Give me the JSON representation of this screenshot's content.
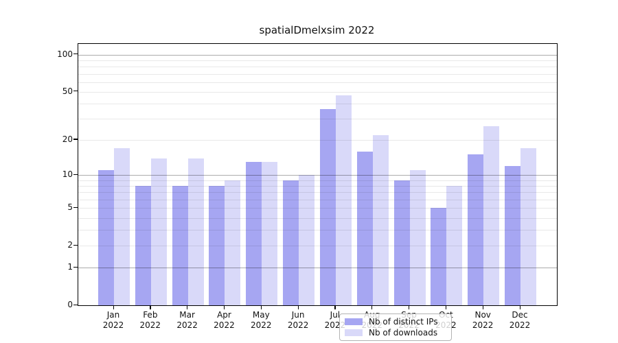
{
  "chart_data": {
    "type": "bar",
    "title": "spatialDmelxsim 2022",
    "categories": [
      "Jan",
      "Feb",
      "Mar",
      "Apr",
      "May",
      "Jun",
      "Jul",
      "Aug",
      "Sep",
      "Oct",
      "Nov",
      "Dec"
    ],
    "year_label": "2022",
    "series": [
      {
        "name": "Nb of distinct IPs",
        "values": [
          11,
          8,
          8,
          8,
          13,
          9,
          36,
          16,
          9,
          5,
          15,
          12
        ],
        "color": "rgba(102,102,233,0.58)"
      },
      {
        "name": "Nb of downloads",
        "values": [
          17,
          14,
          14,
          9,
          13,
          10,
          47,
          22,
          11,
          8,
          26,
          17
        ],
        "color": "rgba(102,102,233,0.25)"
      }
    ],
    "yscale": "log1p",
    "ylim": [
      0,
      122
    ],
    "yticks": [
      0,
      1,
      2,
      5,
      10,
      20,
      50,
      100
    ],
    "major_gridlines": [
      1,
      10,
      100
    ],
    "minor_gridlines": [
      2,
      3,
      4,
      5,
      6,
      7,
      8,
      9,
      20,
      30,
      40,
      50,
      60,
      70,
      80,
      90
    ],
    "grid": true,
    "legend_position": "bottom-center",
    "colors": {
      "ips_bar_on_white": "#a6a6f2",
      "downloads_bar_on_white": "#d9d9f9",
      "axis": "#000000",
      "major_grid_on_white": "#adadad",
      "minor_grid_on_white": "#e8e8e8"
    }
  }
}
